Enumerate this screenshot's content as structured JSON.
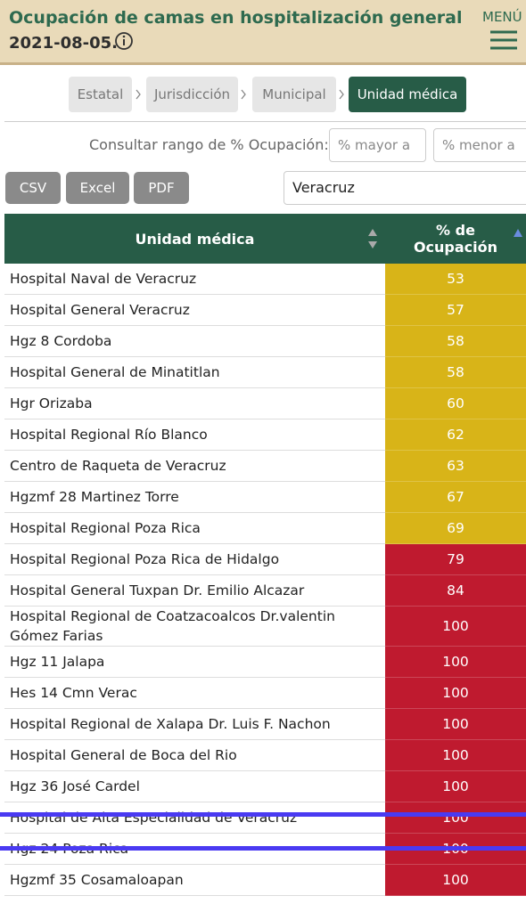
{
  "header": {
    "title": "Ocupación de camas en hospitalización general",
    "date": "2021-08-05.",
    "menu": "MENÚ"
  },
  "breadcrumb": [
    "Estatal",
    "Jurisdicción",
    "Municipal",
    "Unidad médica"
  ],
  "filter": {
    "label": "Consultar rango de % Ocupación:",
    "min_placeholder": "% mayor a",
    "max_placeholder": "% menor a"
  },
  "buttons": [
    "CSV",
    "Excel",
    "PDF"
  ],
  "search": "Veracruz",
  "table": {
    "columns": [
      "Unidad médica",
      "% de Ocupación"
    ],
    "rows": [
      {
        "unit": "Hospital Naval de Veracruz",
        "pct": 53,
        "color": "#d8b418"
      },
      {
        "unit": "Hospital General Veracruz",
        "pct": 57,
        "color": "#d8b418"
      },
      {
        "unit": "Hgz 8 Cordoba",
        "pct": 58,
        "color": "#d8b418"
      },
      {
        "unit": "Hospital General de Minatitlan",
        "pct": 58,
        "color": "#d8b418"
      },
      {
        "unit": "Hgr Orizaba",
        "pct": 60,
        "color": "#d8b418"
      },
      {
        "unit": "Hospital Regional Río Blanco",
        "pct": 62,
        "color": "#d8b418"
      },
      {
        "unit": "Centro de Raqueta de Veracruz",
        "pct": 63,
        "color": "#d8b418"
      },
      {
        "unit": "Hgzmf 28 Martinez Torre",
        "pct": 67,
        "color": "#d8b418"
      },
      {
        "unit": "Hospital Regional Poza Rica",
        "pct": 69,
        "color": "#d8b418"
      },
      {
        "unit": "Hospital Regional Poza Rica de Hidalgo",
        "pct": 79,
        "color": "#bf1a2f"
      },
      {
        "unit": "Hospital General Tuxpan Dr. Emilio Alcazar",
        "pct": 84,
        "color": "#bf1a2f"
      },
      {
        "unit": "Hospital Regional de Coatzacoalcos Dr.valentin Gómez Farias",
        "pct": 100,
        "color": "#bf1a2f"
      },
      {
        "unit": "Hgz 11 Jalapa",
        "pct": 100,
        "color": "#bf1a2f"
      },
      {
        "unit": "Hes 14 Cmn Verac",
        "pct": 100,
        "color": "#bf1a2f"
      },
      {
        "unit": "Hospital Regional de Xalapa Dr. Luis F. Nachon",
        "pct": 100,
        "color": "#bf1a2f"
      },
      {
        "unit": "Hospital General de Boca del Rio",
        "pct": 100,
        "color": "#bf1a2f"
      },
      {
        "unit": "Hgz 36 José Cardel",
        "pct": 100,
        "color": "#bf1a2f"
      },
      {
        "unit": "Hospital de Alta Especialidad de Veracruz",
        "pct": 100,
        "color": "#bf1a2f"
      },
      {
        "unit": "Hgz 24 Poza Rica",
        "pct": 100,
        "color": "#bf1a2f"
      },
      {
        "unit": "Hgzmf 35 Cosamaloapan",
        "pct": 100,
        "color": "#bf1a2f"
      }
    ]
  }
}
